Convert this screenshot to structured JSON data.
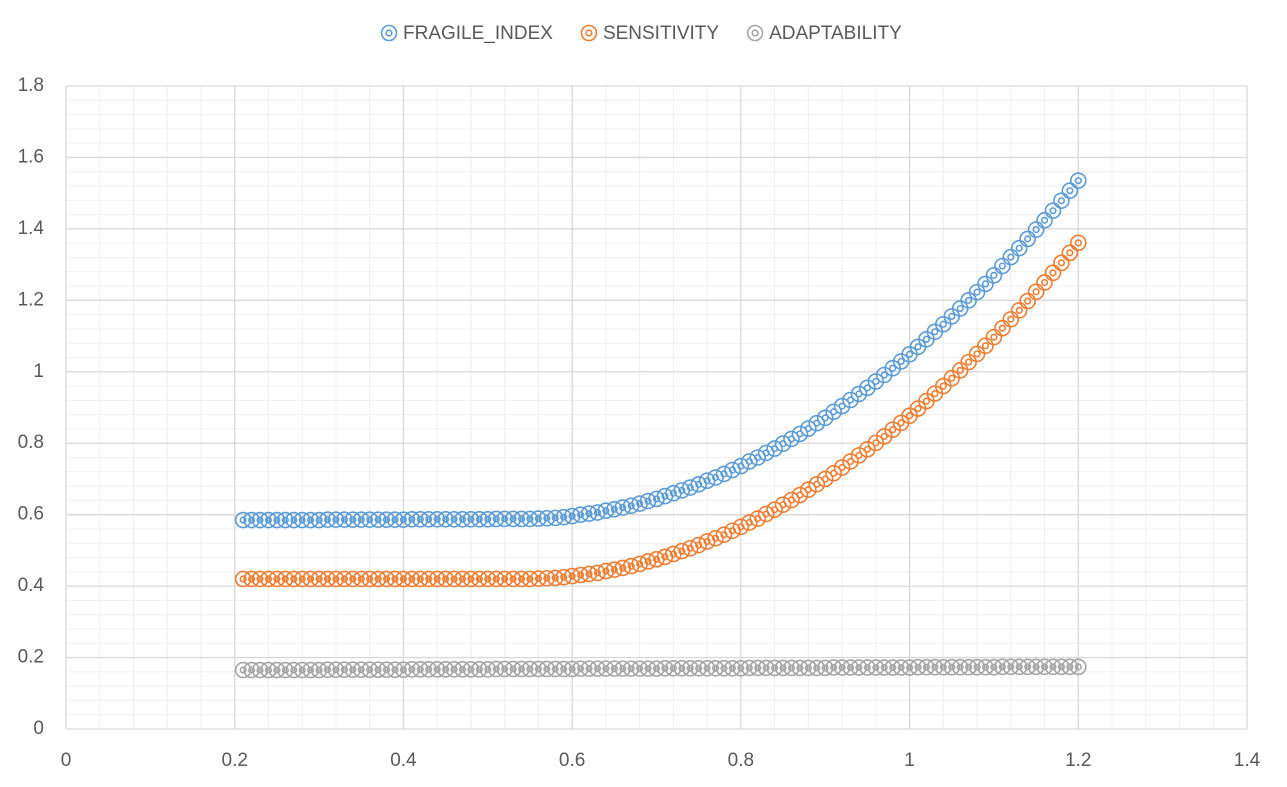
{
  "chart_data": {
    "type": "scatter",
    "x": [
      0.21,
      0.22,
      0.23,
      0.24,
      0.25,
      0.26,
      0.27,
      0.28,
      0.29,
      0.3,
      0.31,
      0.32,
      0.33,
      0.34,
      0.35,
      0.36,
      0.37,
      0.38,
      0.39,
      0.4,
      0.41,
      0.42,
      0.43,
      0.44,
      0.45,
      0.46,
      0.47,
      0.48,
      0.49,
      0.5,
      0.51,
      0.52,
      0.53,
      0.54,
      0.55,
      0.56,
      0.57,
      0.58,
      0.59,
      0.6,
      0.61,
      0.62,
      0.63,
      0.64,
      0.65,
      0.66,
      0.67,
      0.68,
      0.69,
      0.7,
      0.71,
      0.72,
      0.73,
      0.74,
      0.75,
      0.76,
      0.77,
      0.78,
      0.79,
      0.8,
      0.81,
      0.82,
      0.83,
      0.84,
      0.85,
      0.86,
      0.87,
      0.88,
      0.89,
      0.9,
      0.91,
      0.92,
      0.93,
      0.94,
      0.95,
      0.96,
      0.97,
      0.98,
      0.99,
      1.0,
      1.01,
      1.02,
      1.03,
      1.04,
      1.05,
      1.06,
      1.07,
      1.08,
      1.09,
      1.1,
      1.11,
      1.12,
      1.13,
      1.14,
      1.15,
      1.16,
      1.17,
      1.18,
      1.19,
      1.2
    ],
    "series": [
      {
        "name": "FRAGILE_INDEX",
        "color": "#5b9bd5",
        "values": [
          0.585,
          0.585,
          0.585,
          0.585,
          0.585,
          0.585,
          0.585,
          0.585,
          0.585,
          0.585,
          0.586,
          0.586,
          0.586,
          0.586,
          0.586,
          0.586,
          0.586,
          0.586,
          0.586,
          0.586,
          0.587,
          0.587,
          0.587,
          0.587,
          0.587,
          0.587,
          0.587,
          0.587,
          0.587,
          0.587,
          0.588,
          0.588,
          0.588,
          0.588,
          0.588,
          0.589,
          0.59,
          0.591,
          0.593,
          0.596,
          0.6,
          0.603,
          0.606,
          0.611,
          0.615,
          0.62,
          0.625,
          0.631,
          0.638,
          0.644,
          0.652,
          0.66,
          0.668,
          0.676,
          0.685,
          0.695,
          0.704,
          0.714,
          0.725,
          0.736,
          0.749,
          0.76,
          0.773,
          0.785,
          0.799,
          0.812,
          0.826,
          0.841,
          0.856,
          0.871,
          0.888,
          0.904,
          0.921,
          0.938,
          0.955,
          0.973,
          0.991,
          1.01,
          1.029,
          1.049,
          1.07,
          1.091,
          1.112,
          1.133,
          1.155,
          1.177,
          1.2,
          1.223,
          1.246,
          1.27,
          1.296,
          1.321,
          1.346,
          1.372,
          1.398,
          1.424,
          1.451,
          1.479,
          1.507,
          1.535
        ]
      },
      {
        "name": "SENSITIVITY",
        "color": "#ed7d31",
        "values": [
          0.42,
          0.42,
          0.42,
          0.42,
          0.42,
          0.42,
          0.42,
          0.42,
          0.42,
          0.42,
          0.42,
          0.42,
          0.42,
          0.42,
          0.42,
          0.42,
          0.42,
          0.42,
          0.42,
          0.42,
          0.42,
          0.42,
          0.42,
          0.42,
          0.42,
          0.42,
          0.42,
          0.42,
          0.42,
          0.42,
          0.42,
          0.42,
          0.42,
          0.42,
          0.42,
          0.421,
          0.422,
          0.423,
          0.425,
          0.428,
          0.431,
          0.434,
          0.437,
          0.442,
          0.446,
          0.451,
          0.456,
          0.462,
          0.469,
          0.475,
          0.482,
          0.49,
          0.498,
          0.506,
          0.515,
          0.525,
          0.534,
          0.544,
          0.555,
          0.566,
          0.578,
          0.589,
          0.602,
          0.614,
          0.628,
          0.641,
          0.655,
          0.67,
          0.685,
          0.7,
          0.716,
          0.732,
          0.749,
          0.766,
          0.783,
          0.801,
          0.819,
          0.838,
          0.857,
          0.877,
          0.897,
          0.918,
          0.939,
          0.96,
          0.982,
          1.004,
          1.027,
          1.05,
          1.073,
          1.097,
          1.122,
          1.147,
          1.172,
          1.198,
          1.224,
          1.25,
          1.277,
          1.305,
          1.333,
          1.361
        ]
      },
      {
        "name": "ADAPTABILITY",
        "color": "#a5a5a5",
        "values": [
          0.165,
          0.165,
          0.165,
          0.165,
          0.165,
          0.165,
          0.165,
          0.165,
          0.165,
          0.165,
          0.166,
          0.166,
          0.166,
          0.166,
          0.166,
          0.166,
          0.166,
          0.166,
          0.166,
          0.166,
          0.167,
          0.167,
          0.167,
          0.167,
          0.167,
          0.167,
          0.167,
          0.167,
          0.167,
          0.167,
          0.168,
          0.168,
          0.168,
          0.168,
          0.168,
          0.168,
          0.168,
          0.168,
          0.168,
          0.168,
          0.169,
          0.169,
          0.169,
          0.169,
          0.169,
          0.169,
          0.169,
          0.169,
          0.169,
          0.169,
          0.17,
          0.17,
          0.17,
          0.17,
          0.17,
          0.17,
          0.17,
          0.17,
          0.17,
          0.17,
          0.171,
          0.171,
          0.171,
          0.171,
          0.171,
          0.171,
          0.171,
          0.171,
          0.171,
          0.171,
          0.172,
          0.172,
          0.172,
          0.172,
          0.172,
          0.172,
          0.172,
          0.172,
          0.172,
          0.172,
          0.173,
          0.173,
          0.173,
          0.173,
          0.173,
          0.173,
          0.173,
          0.173,
          0.173,
          0.173,
          0.174,
          0.174,
          0.174,
          0.174,
          0.174,
          0.174,
          0.174,
          0.174,
          0.174,
          0.174
        ]
      }
    ],
    "xlim": [
      0,
      1.4
    ],
    "xticks": [
      0,
      0.2,
      0.4,
      0.6,
      0.8,
      1,
      1.2,
      1.4
    ],
    "ylim": [
      0,
      1.8
    ],
    "yticks": [
      0,
      0.2,
      0.4,
      0.6,
      0.8,
      1,
      1.2,
      1.4,
      1.6,
      1.8
    ],
    "grid": true,
    "minor_grid_step": 0.04,
    "legend": "top"
  }
}
